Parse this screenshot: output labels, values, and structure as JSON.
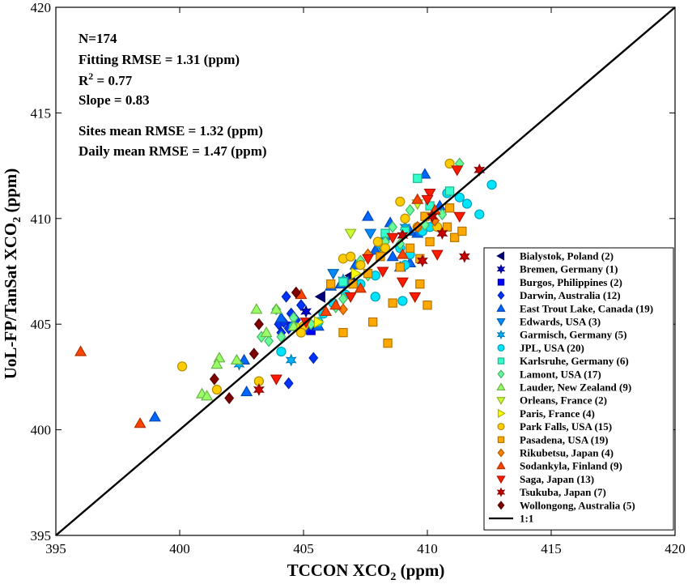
{
  "chart_data": {
    "type": "scatter",
    "xlabel": {
      "main": "TCCON XCO",
      "sub": "2",
      "tail": " (ppm)"
    },
    "ylabel": {
      "main": "UoL-FP/TanSat XCO",
      "sub": "2",
      "tail": " (ppm)"
    },
    "xlim": [
      395,
      420
    ],
    "ylim": [
      395,
      420
    ],
    "xticks": [
      "395",
      "400",
      "405",
      "410",
      "415",
      "420"
    ],
    "yticks": [
      "395",
      "400",
      "405",
      "410",
      "415",
      "420"
    ],
    "grid": false,
    "legend_position": "bottom-right",
    "stats": {
      "n": "N=174",
      "fitting_rmse": "Fitting RMSE = 1.31 (ppm)",
      "r2_prefix": "R",
      "r2_sup": "2",
      "r2_value": " = 0.77",
      "slope": "Slope = 0.83",
      "sites_rmse": "Sites mean RMSE = 1.32 (ppm)",
      "daily_rmse": "Daily mean RMSE = 1.47 (ppm)"
    },
    "reference_line": {
      "label": "1:1",
      "x": [
        395,
        420
      ],
      "y": [
        395,
        420
      ],
      "color": "#000000"
    },
    "series": [
      {
        "name": "Bialystok, Poland (2)",
        "marker": "triangle-left",
        "color": "#00007f",
        "points": [
          [
            406.9,
            407.3
          ],
          [
            405.7,
            406.3
          ]
        ]
      },
      {
        "name": "Bremen, Germany (1)",
        "marker": "hexagram",
        "color": "#0000c8",
        "points": [
          [
            405.1,
            405.6
          ]
        ]
      },
      {
        "name": "Burgos, Philippines (2)",
        "marker": "square",
        "color": "#0000ff",
        "points": [
          [
            404.5,
            404.9
          ],
          [
            405.3,
            404.7
          ]
        ]
      },
      {
        "name": "Darwin, Australia (12)",
        "marker": "diamond",
        "color": "#0033ff",
        "points": [
          [
            404.3,
            406.3
          ],
          [
            404.5,
            405.5
          ],
          [
            404.4,
            404.8
          ],
          [
            404.7,
            405.2
          ],
          [
            405.4,
            403.4
          ],
          [
            404.4,
            402.2
          ],
          [
            404.0,
            405.0
          ],
          [
            405.1,
            404.8
          ],
          [
            404.2,
            405.1
          ],
          [
            405.5,
            405.0
          ],
          [
            404.1,
            404.6
          ],
          [
            404.9,
            405.9
          ]
        ]
      },
      {
        "name": "East Trout Lake, Canada (19)",
        "marker": "triangle-up",
        "color": "#0066ff",
        "points": [
          [
            399.0,
            400.6
          ],
          [
            402.6,
            403.3
          ],
          [
            402.7,
            401.8
          ],
          [
            407.6,
            410.1
          ],
          [
            408.6,
            408.2
          ],
          [
            409.9,
            412.1
          ],
          [
            409.3,
            407.9
          ],
          [
            406.1,
            406.8
          ],
          [
            407.1,
            407.8
          ],
          [
            408.5,
            409.8
          ],
          [
            409.6,
            409.3
          ],
          [
            404.1,
            405.3
          ],
          [
            405.6,
            404.9
          ],
          [
            406.5,
            406.9
          ],
          [
            407.9,
            408.5
          ],
          [
            410.5,
            410.6
          ],
          [
            408.9,
            407.7
          ],
          [
            406.8,
            407.0
          ],
          [
            409.3,
            409.4
          ]
        ]
      },
      {
        "name": "Edwards, USA (3)",
        "marker": "triangle-down",
        "color": "#008cff",
        "points": [
          [
            406.2,
            407.4
          ],
          [
            407.7,
            409.3
          ],
          [
            408.3,
            408.9
          ]
        ]
      },
      {
        "name": "Garmisch, Germany (5)",
        "marker": "hexagram",
        "color": "#00b3ff",
        "points": [
          [
            402.4,
            403.1
          ],
          [
            404.5,
            403.3
          ],
          [
            406.6,
            407.1
          ],
          [
            408.1,
            408.7
          ],
          [
            409.1,
            409.6
          ]
        ]
      },
      {
        "name": "JPL, USA (20)",
        "marker": "circle",
        "color": "#00e5ff",
        "points": [
          [
            412.6,
            411.6
          ],
          [
            411.6,
            410.7
          ],
          [
            412.1,
            410.2
          ],
          [
            410.8,
            411.2
          ],
          [
            409.1,
            407.8
          ],
          [
            409.8,
            409.4
          ],
          [
            407.9,
            407.3
          ],
          [
            407.3,
            406.9
          ],
          [
            405.6,
            405.1
          ],
          [
            404.6,
            404.9
          ],
          [
            406.2,
            406.0
          ],
          [
            408.9,
            408.6
          ],
          [
            409.3,
            408.3
          ],
          [
            410.1,
            409.6
          ],
          [
            406.7,
            406.4
          ],
          [
            409.0,
            406.1
          ],
          [
            404.1,
            403.7
          ],
          [
            405.8,
            405.5
          ],
          [
            407.9,
            406.3
          ],
          [
            411.3,
            411.0
          ]
        ]
      },
      {
        "name": "Karlsruhe, Germany (6)",
        "marker": "square",
        "color": "#33ffcc",
        "points": [
          [
            409.6,
            411.9
          ],
          [
            408.3,
            409.3
          ],
          [
            410.1,
            410.6
          ],
          [
            406.6,
            407.0
          ],
          [
            409.1,
            409.4
          ],
          [
            410.9,
            411.3
          ]
        ]
      },
      {
        "name": "Lamont, USA (17)",
        "marker": "diamond",
        "color": "#66ff99",
        "points": [
          [
            403.9,
            405.7
          ],
          [
            404.1,
            404.4
          ],
          [
            403.6,
            404.2
          ],
          [
            403.3,
            404.4
          ],
          [
            407.6,
            407.3
          ],
          [
            408.9,
            408.8
          ],
          [
            409.3,
            410.4
          ],
          [
            408.3,
            408.9
          ],
          [
            406.6,
            406.2
          ],
          [
            405.3,
            405.0
          ],
          [
            404.6,
            405.3
          ],
          [
            406.3,
            405.8
          ],
          [
            410.6,
            410.2
          ],
          [
            409.9,
            409.7
          ],
          [
            407.3,
            408.0
          ],
          [
            408.6,
            409.6
          ],
          [
            411.3,
            412.6
          ]
        ]
      },
      {
        "name": "Lauder, New Zealand (9)",
        "marker": "triangle-up",
        "color": "#99ff66",
        "points": [
          [
            400.9,
            401.7
          ],
          [
            401.6,
            403.4
          ],
          [
            401.5,
            403.1
          ],
          [
            403.1,
            405.7
          ],
          [
            403.9,
            405.7
          ],
          [
            402.3,
            403.3
          ],
          [
            404.6,
            404.9
          ],
          [
            401.1,
            401.6
          ],
          [
            403.5,
            404.6
          ]
        ]
      },
      {
        "name": "Orleans, France (2)",
        "marker": "triangle-down",
        "color": "#ccff33",
        "points": [
          [
            406.9,
            409.3
          ],
          [
            409.6,
            410.7
          ]
        ]
      },
      {
        "name": "Paris, France (4)",
        "marker": "triangle-right",
        "color": "#ffff00",
        "points": [
          [
            404.9,
            404.8
          ],
          [
            405.6,
            405.1
          ],
          [
            407.1,
            407.4
          ],
          [
            408.3,
            408.5
          ]
        ]
      },
      {
        "name": "Park Falls, USA (15)",
        "marker": "circle",
        "color": "#ffcc00",
        "points": [
          [
            400.1,
            403.0
          ],
          [
            401.5,
            401.9
          ],
          [
            403.2,
            402.3
          ],
          [
            405.0,
            404.9
          ],
          [
            406.6,
            408.1
          ],
          [
            407.3,
            407.8
          ],
          [
            408.0,
            408.9
          ],
          [
            408.9,
            410.8
          ],
          [
            410.9,
            412.6
          ],
          [
            409.6,
            409.6
          ],
          [
            410.4,
            409.6
          ],
          [
            406.9,
            408.2
          ],
          [
            404.9,
            404.6
          ],
          [
            408.3,
            408.6
          ],
          [
            409.1,
            410.0
          ]
        ]
      },
      {
        "name": "Pasadena, USA (19)",
        "marker": "square",
        "color": "#ffa800",
        "points": [
          [
            406.6,
            404.6
          ],
          [
            408.4,
            404.1
          ],
          [
            410.0,
            405.9
          ],
          [
            409.7,
            408.1
          ],
          [
            410.8,
            409.6
          ],
          [
            411.1,
            409.1
          ],
          [
            411.4,
            409.4
          ],
          [
            407.8,
            405.1
          ],
          [
            408.6,
            406.0
          ],
          [
            409.7,
            406.9
          ],
          [
            410.1,
            408.9
          ],
          [
            407.6,
            407.4
          ],
          [
            408.9,
            407.7
          ],
          [
            409.3,
            408.6
          ],
          [
            410.9,
            410.5
          ],
          [
            408.1,
            408.2
          ],
          [
            409.9,
            410.1
          ],
          [
            406.1,
            406.9
          ],
          [
            407.0,
            406.9
          ]
        ]
      },
      {
        "name": "Rikubetsu, Japan (4)",
        "marker": "diamond",
        "color": "#ff7f00",
        "points": [
          [
            406.6,
            405.7
          ],
          [
            407.6,
            408.3
          ],
          [
            409.6,
            409.6
          ],
          [
            410.3,
            409.9
          ]
        ]
      },
      {
        "name": "Sodankyla, Finland (9)",
        "marker": "triangle-up",
        "color": "#ff4400",
        "points": [
          [
            396.0,
            403.7
          ],
          [
            398.4,
            400.3
          ],
          [
            404.9,
            406.4
          ],
          [
            405.9,
            405.6
          ],
          [
            406.3,
            405.9
          ],
          [
            407.3,
            406.7
          ],
          [
            409.0,
            408.3
          ],
          [
            409.6,
            410.9
          ],
          [
            410.3,
            410.4
          ]
        ]
      },
      {
        "name": "Saga, Japan (13)",
        "marker": "triangle-down",
        "color": "#ff1a00",
        "points": [
          [
            403.9,
            402.4
          ],
          [
            405.1,
            405.1
          ],
          [
            406.9,
            406.3
          ],
          [
            408.2,
            407.5
          ],
          [
            409.0,
            407.0
          ],
          [
            409.5,
            406.3
          ],
          [
            410.4,
            408.3
          ],
          [
            411.3,
            410.1
          ],
          [
            411.2,
            412.3
          ],
          [
            410.1,
            411.2
          ],
          [
            408.6,
            409.1
          ],
          [
            407.6,
            408.1
          ],
          [
            410.0,
            410.9
          ]
        ]
      },
      {
        "name": "Tsukuba, Japan (7)",
        "marker": "hexagram",
        "color": "#c80000",
        "points": [
          [
            403.2,
            401.9
          ],
          [
            409.0,
            409.2
          ],
          [
            411.5,
            408.2
          ],
          [
            412.1,
            412.3
          ],
          [
            409.8,
            408.0
          ],
          [
            410.6,
            409.3
          ],
          [
            410.2,
            410.1
          ]
        ]
      },
      {
        "name": "Wollongong, Australia (5)",
        "marker": "diamond",
        "color": "#7f0000",
        "points": [
          [
            401.4,
            402.4
          ],
          [
            402.0,
            401.5
          ],
          [
            403.0,
            403.6
          ],
          [
            404.7,
            406.5
          ],
          [
            403.2,
            405.0
          ]
        ]
      }
    ]
  }
}
